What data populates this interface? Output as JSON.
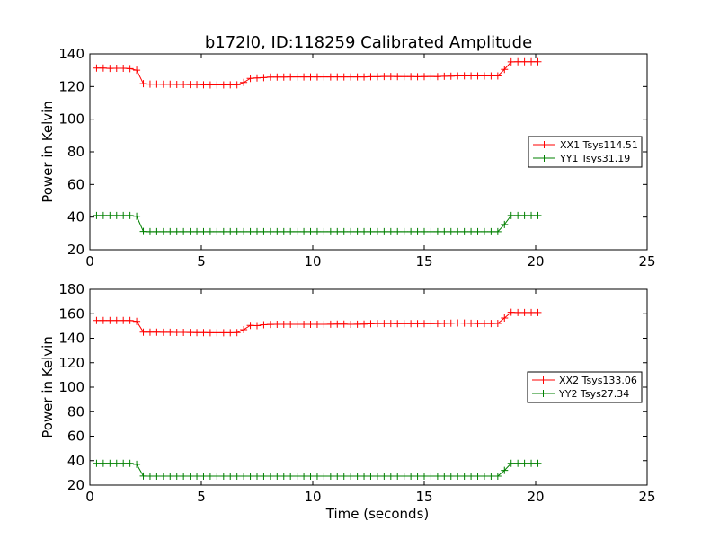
{
  "figure_title": "b172l0, ID:118259 Calibrated Amplitude",
  "shared_xlabel": "Time (seconds)",
  "colors": {
    "red_series": "#ff0000",
    "green_series": "#008000",
    "axes": "#000000",
    "background": "#ffffff"
  },
  "marker": "plus",
  "chart_data": [
    {
      "type": "line",
      "title": "b172l0, ID:118259 Calibrated Amplitude",
      "xlabel": "",
      "ylabel": "Power in Kelvin",
      "xlim": [
        0,
        25
      ],
      "ylim": [
        20,
        140
      ],
      "xticks": [
        "0",
        "5",
        "10",
        "15",
        "20",
        "25"
      ],
      "yticks": [
        "20",
        "40",
        "60",
        "80",
        "100",
        "120",
        "140"
      ],
      "grid": false,
      "legend_position": "center-right",
      "x": [
        0.3,
        0.6,
        0.9,
        1.2,
        1.5,
        1.8,
        2.1,
        2.4,
        2.7,
        3.0,
        3.3,
        3.6,
        3.9,
        4.2,
        4.5,
        4.8,
        5.1,
        5.4,
        5.7,
        6.0,
        6.3,
        6.6,
        6.9,
        7.2,
        7.5,
        7.8,
        8.1,
        8.4,
        8.7,
        9.0,
        9.3,
        9.6,
        9.9,
        10.2,
        10.5,
        10.8,
        11.1,
        11.4,
        11.7,
        12.0,
        12.3,
        12.6,
        12.9,
        13.2,
        13.5,
        13.8,
        14.1,
        14.4,
        14.7,
        15.0,
        15.3,
        15.6,
        15.9,
        16.2,
        16.5,
        16.8,
        17.1,
        17.4,
        17.7,
        18.0,
        18.3,
        18.6,
        18.9,
        19.2,
        19.5,
        19.8,
        20.1
      ],
      "series": [
        {
          "name": "XX1 Tsys114.51",
          "color": "#ff0000",
          "values": [
            131.3,
            131.3,
            131.1,
            131.2,
            131.2,
            131.0,
            130.0,
            121.8,
            121.5,
            121.5,
            121.4,
            121.4,
            121.3,
            121.3,
            121.2,
            121.2,
            121.1,
            121.0,
            121.0,
            121.0,
            121.1,
            121.1,
            122.5,
            125.0,
            125.3,
            125.5,
            125.8,
            125.8,
            125.8,
            125.9,
            125.9,
            125.9,
            125.9,
            125.9,
            125.9,
            125.9,
            125.9,
            125.9,
            125.9,
            125.9,
            125.9,
            126.0,
            126.0,
            126.2,
            126.2,
            126.1,
            126.1,
            126.1,
            126.0,
            126.1,
            126.2,
            126.1,
            126.3,
            126.4,
            126.5,
            126.6,
            126.5,
            126.5,
            126.5,
            126.5,
            126.5,
            130.5,
            135.1,
            135.2,
            135.2,
            135.2,
            135.2
          ]
        },
        {
          "name": "YY1 Tsys31.19",
          "color": "#008000",
          "values": [
            41.0,
            41.0,
            41.0,
            41.0,
            41.0,
            41.0,
            40.5,
            31.2,
            31.1,
            31.1,
            31.1,
            31.1,
            31.1,
            31.1,
            31.1,
            31.1,
            31.1,
            31.1,
            31.1,
            31.1,
            31.1,
            31.1,
            31.1,
            31.1,
            31.1,
            31.1,
            31.1,
            31.1,
            31.1,
            31.1,
            31.1,
            31.1,
            31.1,
            31.1,
            31.1,
            31.1,
            31.1,
            31.1,
            31.1,
            31.1,
            31.1,
            31.1,
            31.1,
            31.1,
            31.1,
            31.1,
            31.1,
            31.1,
            31.1,
            31.1,
            31.1,
            31.1,
            31.1,
            31.1,
            31.1,
            31.1,
            31.1,
            31.1,
            31.1,
            31.1,
            31.1,
            35.5,
            41.0,
            41.0,
            41.0,
            41.0,
            41.0
          ]
        }
      ]
    },
    {
      "type": "line",
      "title": "",
      "xlabel": "Time (seconds)",
      "ylabel": "Power in Kelvin",
      "xlim": [
        0,
        25
      ],
      "ylim": [
        20,
        180
      ],
      "xticks": [
        "0",
        "5",
        "10",
        "15",
        "20",
        "25"
      ],
      "yticks": [
        "20",
        "40",
        "60",
        "80",
        "100",
        "120",
        "140",
        "160",
        "180"
      ],
      "grid": false,
      "legend_position": "center-right",
      "x": [
        0.3,
        0.6,
        0.9,
        1.2,
        1.5,
        1.8,
        2.1,
        2.4,
        2.7,
        3.0,
        3.3,
        3.6,
        3.9,
        4.2,
        4.5,
        4.8,
        5.1,
        5.4,
        5.7,
        6.0,
        6.3,
        6.6,
        6.9,
        7.2,
        7.5,
        7.8,
        8.1,
        8.4,
        8.7,
        9.0,
        9.3,
        9.6,
        9.9,
        10.2,
        10.5,
        10.8,
        11.1,
        11.4,
        11.7,
        12.0,
        12.3,
        12.6,
        12.9,
        13.2,
        13.5,
        13.8,
        14.1,
        14.4,
        14.7,
        15.0,
        15.3,
        15.6,
        15.9,
        16.2,
        16.5,
        16.8,
        17.1,
        17.4,
        17.7,
        18.0,
        18.3,
        18.6,
        18.9,
        19.2,
        19.5,
        19.8,
        20.1
      ],
      "series": [
        {
          "name": "XX2 Tsys133.06",
          "color": "#ff0000",
          "values": [
            154.5,
            154.5,
            154.5,
            154.5,
            154.5,
            154.5,
            153.8,
            145.0,
            145.0,
            145.0,
            144.9,
            144.9,
            144.8,
            144.8,
            144.7,
            144.6,
            144.6,
            144.5,
            144.5,
            144.5,
            144.5,
            144.6,
            147.0,
            150.5,
            150.3,
            151.0,
            151.3,
            151.4,
            151.4,
            151.4,
            151.4,
            151.4,
            151.4,
            151.4,
            151.4,
            151.5,
            151.6,
            151.6,
            151.4,
            151.5,
            151.6,
            151.8,
            152.0,
            152.0,
            152.0,
            151.9,
            151.9,
            151.9,
            151.9,
            151.9,
            151.9,
            152.0,
            152.1,
            152.3,
            152.5,
            152.4,
            152.2,
            152.0,
            152.0,
            152.0,
            152.1,
            156.5,
            161.2,
            161.0,
            161.0,
            161.0,
            161.0
          ]
        },
        {
          "name": "YY2 Tsys27.34",
          "color": "#008000",
          "values": [
            37.8,
            37.8,
            37.8,
            37.8,
            37.8,
            37.8,
            37.0,
            27.4,
            27.3,
            27.3,
            27.3,
            27.3,
            27.3,
            27.3,
            27.3,
            27.3,
            27.3,
            27.3,
            27.3,
            27.3,
            27.3,
            27.3,
            27.3,
            27.3,
            27.3,
            27.3,
            27.3,
            27.3,
            27.3,
            27.3,
            27.3,
            27.3,
            27.3,
            27.3,
            27.3,
            27.3,
            27.3,
            27.3,
            27.3,
            27.3,
            27.3,
            27.3,
            27.3,
            27.3,
            27.3,
            27.3,
            27.3,
            27.3,
            27.3,
            27.3,
            27.3,
            27.3,
            27.3,
            27.3,
            27.3,
            27.3,
            27.3,
            27.3,
            27.3,
            27.3,
            27.3,
            32.0,
            37.8,
            37.8,
            37.8,
            37.8,
            37.8
          ]
        }
      ]
    }
  ]
}
